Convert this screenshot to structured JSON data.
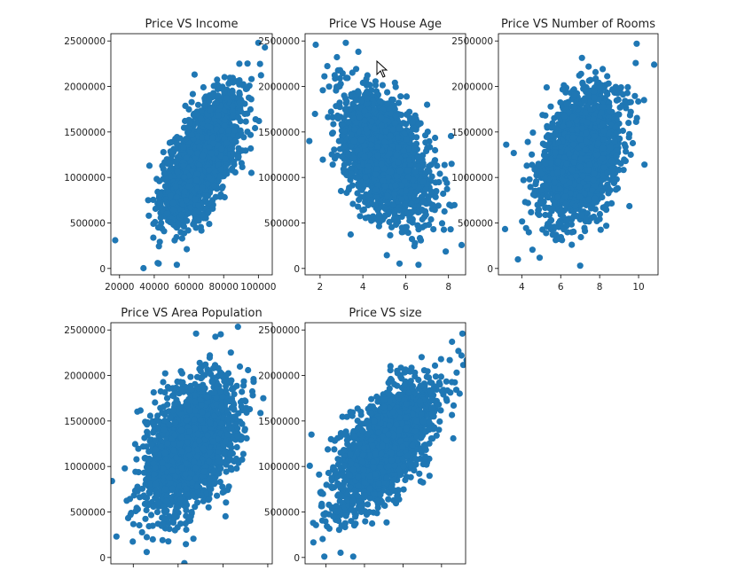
{
  "figure": {
    "marker_color": "#1f77b4",
    "background": "#ffffff"
  },
  "chart_data": [
    {
      "type": "scatter",
      "title": "Price VS Income",
      "xlabel": "",
      "ylabel": "",
      "xlim": [
        15000,
        108000
      ],
      "ylim": [
        -70000,
        2580000
      ],
      "xticks": [
        20000,
        40000,
        60000,
        80000,
        100000
      ],
      "xtick_labels": [
        "20000",
        "40000",
        "60000",
        "80000",
        "100000"
      ],
      "yticks": [
        0,
        500000,
        1000000,
        1500000,
        2000000,
        2500000
      ],
      "ytick_labels": [
        "0",
        "500000",
        "1000000",
        "1500000",
        "2000000",
        "2500000"
      ],
      "show_y_labels": true,
      "cloud": {
        "x_mean": 68000,
        "x_sd": 10500,
        "y_mean": 1230000,
        "y_sd": 350000,
        "corr": 0.64,
        "n": 2000
      },
      "outliers": [
        [
          17500,
          310000
        ],
        [
          100000,
          2480000
        ],
        [
          42000,
          60000
        ],
        [
          53000,
          40000
        ],
        [
          96000,
          1050000
        ]
      ]
    },
    {
      "type": "scatter",
      "title": "Price VS House Age",
      "xlabel": "",
      "ylabel": "",
      "xlim": [
        1.3,
        8.8
      ],
      "ylim": [
        -70000,
        2580000
      ],
      "xticks": [
        2,
        4,
        6,
        8
      ],
      "xtick_labels": [
        "2",
        "4",
        "6",
        "8"
      ],
      "yticks": [
        0,
        500000,
        1000000,
        1500000,
        2000000,
        2500000
      ],
      "ytick_labels": [
        "0",
        "500000",
        "1000000",
        "1500000",
        "2000000",
        "2500000"
      ],
      "show_y_labels": true,
      "cloud": {
        "x_mean": 5.0,
        "x_sd": 0.99,
        "y_mean": 1230000,
        "y_sd": 350000,
        "corr": -0.45,
        "n": 2000
      },
      "outliers": [
        [
          1.5,
          1400000
        ],
        [
          3.2,
          2480000
        ],
        [
          8.1,
          430000
        ],
        [
          6.6,
          40000
        ],
        [
          7.0,
          1800000
        ]
      ]
    },
    {
      "type": "scatter",
      "title": "Price VS Number of Rooms",
      "xlabel": "",
      "ylabel": "",
      "xlim": [
        2.8,
        11.0
      ],
      "ylim": [
        -70000,
        2580000
      ],
      "xticks": [
        4,
        6,
        8,
        10
      ],
      "xtick_labels": [
        "4",
        "6",
        "8",
        "10"
      ],
      "yticks": [
        0,
        500000,
        1000000,
        1500000,
        2000000,
        2500000
      ],
      "ytick_labels": [
        "0",
        "500000",
        "1000000",
        "1500000",
        "2000000",
        "2500000"
      ],
      "show_y_labels": true,
      "cloud": {
        "x_mean": 7.0,
        "x_sd": 1.0,
        "y_mean": 1230000,
        "y_sd": 350000,
        "corr": 0.34,
        "n": 2000
      },
      "outliers": [
        [
          3.2,
          1360000
        ],
        [
          10.8,
          2240000
        ],
        [
          9.9,
          2470000
        ],
        [
          3.8,
          100000
        ],
        [
          7.0,
          30000
        ]
      ]
    },
    {
      "type": "scatter",
      "title": "Price VS Area Population",
      "xlabel": "",
      "ylabel": "",
      "xlim": [
        0,
        72000
      ],
      "ylim": [
        -70000,
        2580000
      ],
      "xticks": [
        10000,
        30000,
        50000,
        70000
      ],
      "xtick_labels": [
        "",
        "",
        "",
        ""
      ],
      "yticks": [
        0,
        500000,
        1000000,
        1500000,
        2000000,
        2500000
      ],
      "ytick_labels": [
        "0",
        "500000",
        "1000000",
        "1500000",
        "2000000",
        "2500000"
      ],
      "show_y_labels": true,
      "cloud": {
        "x_mean": 36000,
        "x_sd": 9900,
        "y_mean": 1230000,
        "y_sd": 350000,
        "corr": 0.41,
        "n": 2000
      },
      "outliers": [
        [
          500,
          840000
        ],
        [
          2500,
          230000
        ],
        [
          16000,
          60000
        ],
        [
          38000,
          2460000
        ],
        [
          68000,
          1750000
        ]
      ]
    },
    {
      "type": "scatter",
      "title": "Price VS size",
      "xlabel": "",
      "ylabel": "",
      "xlim": [
        0,
        100
      ],
      "ylim": [
        -70000,
        2580000
      ],
      "xticks": [
        13,
        37,
        61,
        85
      ],
      "xtick_labels": [
        "",
        "",
        "",
        ""
      ],
      "yticks": [
        0,
        500000,
        1000000,
        1500000,
        2000000,
        2500000
      ],
      "ytick_labels": [
        "0",
        "500000",
        "1000000",
        "1500000",
        "2000000",
        "2500000"
      ],
      "show_y_labels": true,
      "cloud": {
        "x_mean": 50,
        "x_sd": 15,
        "y_mean": 1230000,
        "y_sd": 350000,
        "corr": 0.62,
        "n": 2000
      },
      "outliers": [
        [
          98,
          2460000
        ],
        [
          5,
          380000
        ],
        [
          12,
          10000
        ],
        [
          30,
          10000
        ],
        [
          4,
          1350000
        ]
      ]
    }
  ]
}
